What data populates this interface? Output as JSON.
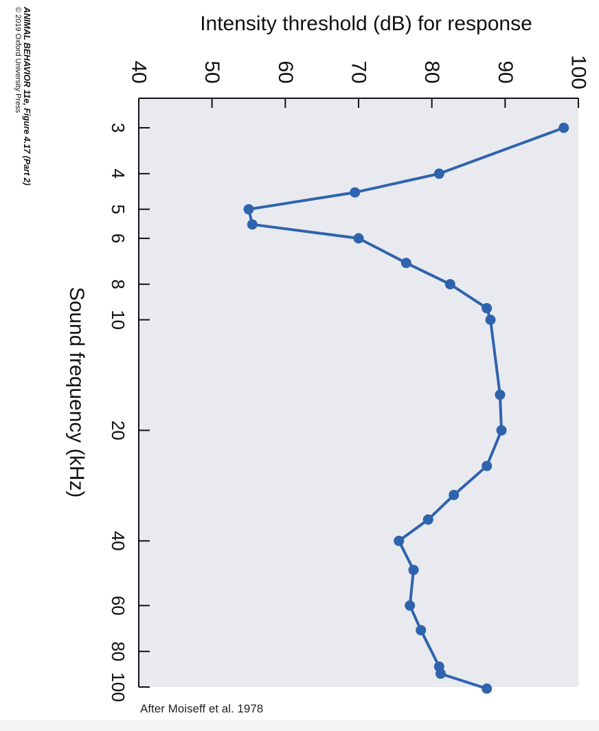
{
  "credit": {
    "line1": "ANIMAL BEHAVIOR 11e, Figure 4.17 (Part 2)",
    "line2": "© 2019 Oxford University Press"
  },
  "source_note": "After Moiseff et al. 1978",
  "colors": {
    "plot_bg": "#e8eaef",
    "line": "#2f63ad",
    "axis": "#111111"
  },
  "chart_data": {
    "type": "line",
    "ylabel": "Intensity threshold (dB) for response",
    "xlabel": "Sound frequency (kHz)",
    "x_scale": "log",
    "x_ticks": [
      3,
      4,
      5,
      6,
      8,
      10,
      20,
      40,
      60,
      80,
      100
    ],
    "y_ticks": [
      40,
      50,
      60,
      70,
      80,
      90,
      100
    ],
    "xlim": [
      3,
      100
    ],
    "ylim": [
      40,
      100
    ],
    "orientation": "rotated 90° clockwise",
    "series": [
      {
        "x": [
          3,
          4,
          4.5,
          5,
          5.5,
          6,
          7,
          8,
          9.3,
          10,
          16,
          20,
          25,
          30,
          35,
          40,
          48,
          60,
          70,
          88,
          92,
          101
        ],
        "y": [
          98,
          81,
          69.5,
          55,
          55.5,
          70,
          76.5,
          82.5,
          87.5,
          88,
          89.3,
          89.5,
          87.5,
          83,
          79.5,
          75.5,
          77.5,
          77,
          78.5,
          81,
          81.2,
          87.5
        ]
      }
    ]
  }
}
